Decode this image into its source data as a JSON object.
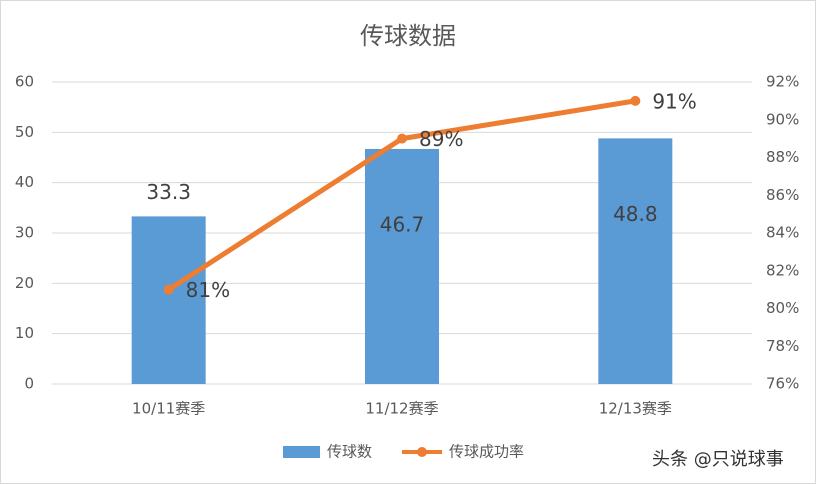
{
  "chart_data": {
    "type": "combo",
    "title": "传球数据",
    "categories": [
      "10/11赛季",
      "11/12赛季",
      "12/13赛季"
    ],
    "series": [
      {
        "name": "传球数",
        "type": "bar",
        "color": "#5b9bd5",
        "values": [
          33.3,
          46.7,
          48.8
        ]
      },
      {
        "name": "传球成功率",
        "type": "line",
        "axis": "y2",
        "color": "#ed7d31",
        "values": [
          81,
          89,
          91
        ],
        "value_labels": [
          "81%",
          "89%",
          "91%"
        ]
      }
    ],
    "ylim": [
      0,
      60
    ],
    "yticks": [
      0,
      10,
      20,
      30,
      40,
      50,
      60
    ],
    "y2lim": [
      76,
      92
    ],
    "y2ticks": [
      {
        "value": 76,
        "label": "76%"
      },
      {
        "value": 78,
        "label": "78%"
      },
      {
        "value": 80,
        "label": "80%"
      },
      {
        "value": 82,
        "label": "82%"
      },
      {
        "value": 84,
        "label": "84%"
      },
      {
        "value": 86,
        "label": "86%"
      },
      {
        "value": 88,
        "label": "88%"
      },
      {
        "value": 90,
        "label": "90%"
      },
      {
        "value": 92,
        "label": "92%"
      }
    ],
    "grid": true,
    "legend": "bottom"
  },
  "watermark": "头条 @只说球事"
}
